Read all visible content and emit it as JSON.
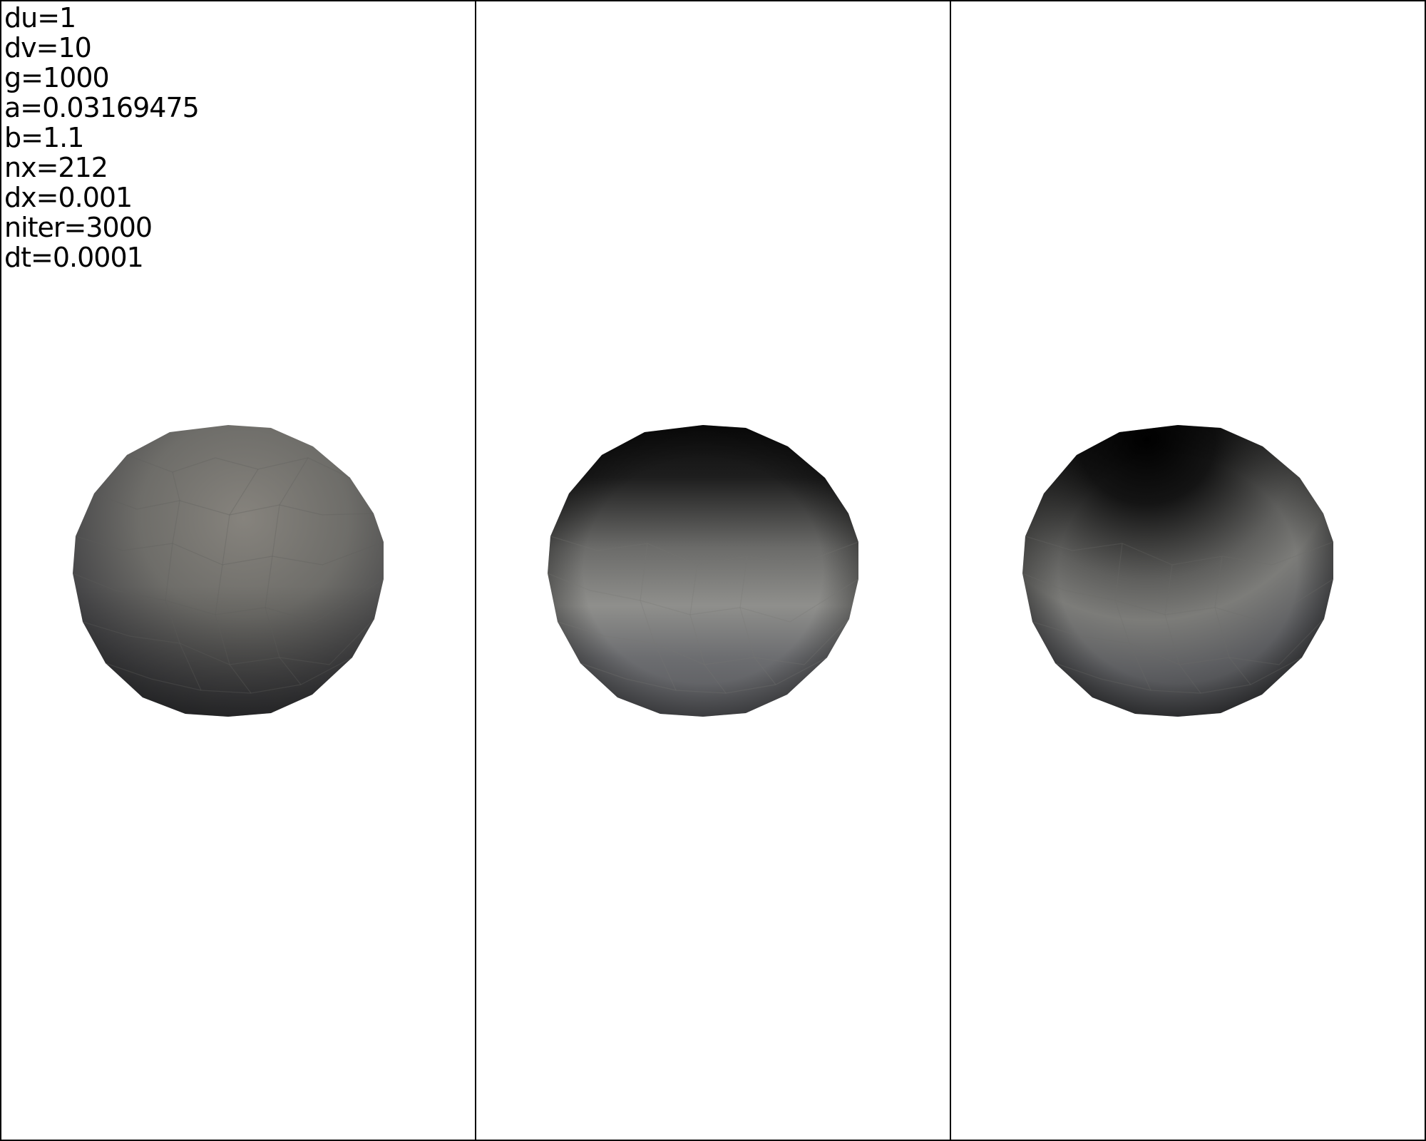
{
  "parameters": [
    "du=1",
    "dv=10",
    "g=1000",
    "a=0.03169475",
    "b=1.1",
    "nx=212",
    "dx=0.001",
    "niter=3000",
    "dt=0.0001"
  ],
  "viewports": [
    {
      "name": "render-viewport-left",
      "shading": "uniform-gray"
    },
    {
      "name": "render-viewport-middle",
      "shading": "dark-top-gradient"
    },
    {
      "name": "render-viewport-right",
      "shading": "darkest-top-gradient"
    }
  ],
  "colors": {
    "background": "#ffffff",
    "border": "#000000",
    "text": "#000000"
  }
}
